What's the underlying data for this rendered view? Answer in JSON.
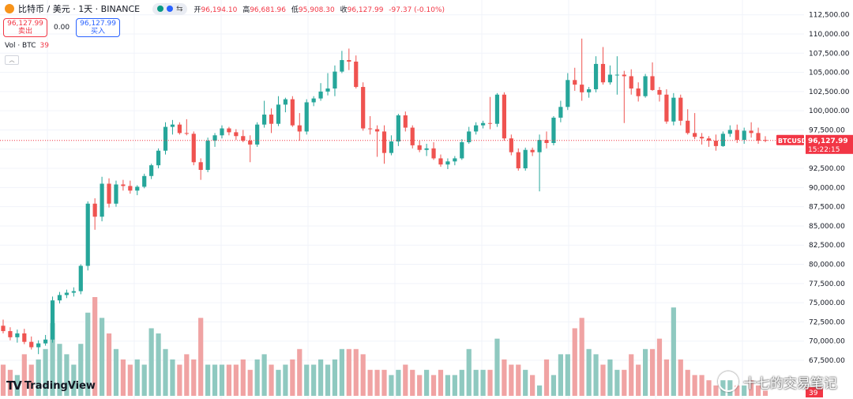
{
  "header": {
    "symbol_title": "比特币 / 美元 · 1天 · BINANCE",
    "ohlc": [
      {
        "label": "开",
        "value": "96,194.10"
      },
      {
        "label": "高",
        "value": "96,681.96"
      },
      {
        "label": "低",
        "value": "95,908.30"
      },
      {
        "label": "收",
        "value": "96,127.99"
      }
    ],
    "change": "-97.37 (-0.10%)",
    "sell_price": "96,127.99",
    "sell_label": "卖出",
    "spread": "0.00",
    "buy_price": "96,127.99",
    "buy_label": "买入",
    "volume_label": "Vol · BTC",
    "volume_value": "39"
  },
  "colors": {
    "up": "#26a69a",
    "down": "#ef5350",
    "up_vol": "#8fc9c0",
    "down_vol": "#f0a3a3"
  },
  "last_price_tag": {
    "ticker": "BTCUSD",
    "price": "96,127.99",
    "countdown": "15:22:15"
  },
  "volume_tag": "39",
  "branding": {
    "logo_text": "TradingView",
    "watermark": "十七的交易笔记"
  },
  "chart_data": {
    "type": "candlestick",
    "y_axis_labels": [
      "112,500.00",
      "110,000.00",
      "107,500.00",
      "105,000.00",
      "102,500.00",
      "100,000.00",
      "97,500.00",
      "95,000.00",
      "92,500.00",
      "90,000.00",
      "87,500.00",
      "85,000.00",
      "82,500.00",
      "80,000.00",
      "77,500.00",
      "75,000.00",
      "72,500.00",
      "70,000.00",
      "67,500.00"
    ],
    "ylim": [
      66000,
      113500
    ],
    "last_price": 96127.99,
    "candles": [
      [
        72000,
        72800,
        71000,
        71300,
        6
      ],
      [
        71300,
        71800,
        70100,
        70500,
        5
      ],
      [
        70500,
        71500,
        69800,
        71000,
        4
      ],
      [
        71000,
        71600,
        69600,
        69900,
        8
      ],
      [
        69900,
        70600,
        68900,
        69200,
        6
      ],
      [
        69200,
        70100,
        68300,
        69700,
        7
      ],
      [
        69700,
        70800,
        69400,
        70200,
        9
      ],
      [
        70200,
        75800,
        69800,
        75300,
        14
      ],
      [
        75300,
        76400,
        74900,
        76000,
        10
      ],
      [
        76000,
        76700,
        75600,
        76300,
        8
      ],
      [
        76300,
        77000,
        75800,
        76500,
        6
      ],
      [
        76500,
        80000,
        76100,
        79800,
        10
      ],
      [
        79800,
        88200,
        79200,
        87900,
        16
      ],
      [
        87900,
        88600,
        84500,
        86200,
        19
      ],
      [
        86200,
        91400,
        85600,
        90500,
        15
      ],
      [
        90500,
        91200,
        87400,
        87900,
        12
      ],
      [
        87900,
        90900,
        87500,
        90400,
        9
      ],
      [
        90400,
        91000,
        89600,
        90200,
        7
      ],
      [
        90200,
        90900,
        89200,
        89600,
        6
      ],
      [
        89600,
        90300,
        89000,
        90100,
        7
      ],
      [
        90100,
        91800,
        89900,
        91500,
        6
      ],
      [
        91500,
        93100,
        91100,
        92900,
        13
      ],
      [
        92900,
        95100,
        92500,
        94800,
        12
      ],
      [
        94800,
        98500,
        94300,
        97900,
        9
      ],
      [
        97900,
        98800,
        96900,
        98200,
        7
      ],
      [
        98200,
        98500,
        96900,
        97100,
        6
      ],
      [
        97100,
        98900,
        96800,
        97000,
        8
      ],
      [
        97000,
        97300,
        92900,
        93300,
        7
      ],
      [
        93300,
        93800,
        91000,
        92300,
        15
      ],
      [
        92300,
        96500,
        92000,
        96100,
        6
      ],
      [
        96100,
        97100,
        95300,
        96800,
        6
      ],
      [
        96800,
        98100,
        96400,
        97700,
        6
      ],
      [
        97700,
        97900,
        96800,
        97200,
        6
      ],
      [
        97200,
        97600,
        96200,
        96700,
        6
      ],
      [
        96700,
        97500,
        95900,
        96100,
        7
      ],
      [
        96100,
        96800,
        93300,
        95600,
        5
      ],
      [
        95600,
        98500,
        95300,
        98200,
        7
      ],
      [
        98200,
        101300,
        97800,
        99500,
        8
      ],
      [
        99500,
        100300,
        97100,
        98300,
        6
      ],
      [
        98300,
        101900,
        98000,
        100800,
        5
      ],
      [
        100800,
        101700,
        99800,
        101500,
        6
      ],
      [
        101500,
        101900,
        97900,
        98100,
        7
      ],
      [
        98100,
        99700,
        96100,
        97300,
        9
      ],
      [
        97300,
        101500,
        96900,
        101100,
        6
      ],
      [
        101100,
        101900,
        100600,
        101600,
        6
      ],
      [
        101600,
        103600,
        101300,
        102500,
        7
      ],
      [
        102500,
        104900,
        102000,
        102900,
        6
      ],
      [
        102900,
        105900,
        101900,
        105100,
        7
      ],
      [
        105100,
        107800,
        104900,
        106600,
        9
      ],
      [
        106600,
        108100,
        105300,
        106400,
        9
      ],
      [
        106400,
        107200,
        102900,
        103100,
        9
      ],
      [
        103100,
        103700,
        97400,
        97700,
        8
      ],
      [
        97700,
        99300,
        96900,
        97600,
        5
      ],
      [
        97600,
        98100,
        94000,
        97300,
        5
      ],
      [
        97300,
        98100,
        93100,
        94500,
        5
      ],
      [
        94500,
        96800,
        94200,
        96000,
        4
      ],
      [
        96000,
        99600,
        95400,
        99400,
        5
      ],
      [
        99400,
        99900,
        97300,
        97800,
        6
      ],
      [
        97800,
        98100,
        95100,
        95500,
        5
      ],
      [
        95500,
        96100,
        94600,
        94900,
        4
      ],
      [
        94900,
        95700,
        94100,
        95100,
        5
      ],
      [
        95100,
        95900,
        93600,
        93800,
        4
      ],
      [
        93800,
        94300,
        92700,
        93000,
        5
      ],
      [
        93000,
        93800,
        92400,
        93400,
        4
      ],
      [
        93400,
        94100,
        92900,
        93800,
        4
      ],
      [
        93800,
        96300,
        93600,
        95900,
        5
      ],
      [
        95900,
        97900,
        95700,
        97300,
        9
      ],
      [
        97300,
        98500,
        96900,
        98100,
        5
      ],
      [
        98100,
        98700,
        97700,
        98400,
        5
      ],
      [
        98400,
        101800,
        97600,
        98300,
        5
      ],
      [
        98300,
        102300,
        97900,
        102100,
        11
      ],
      [
        102100,
        102400,
        96100,
        96400,
        7
      ],
      [
        96400,
        96900,
        94200,
        94600,
        6
      ],
      [
        94600,
        95100,
        92200,
        92500,
        6
      ],
      [
        92500,
        95200,
        92200,
        94900,
        5
      ],
      [
        94900,
        95200,
        94100,
        94600,
        4
      ],
      [
        94600,
        96900,
        89500,
        96200,
        2
      ],
      [
        96200,
        97300,
        95100,
        95800,
        7
      ],
      [
        95800,
        99300,
        95500,
        99100,
        4
      ],
      [
        99100,
        101300,
        98500,
        100500,
        8
      ],
      [
        100500,
        104900,
        100100,
        104000,
        8
      ],
      [
        104000,
        105600,
        102600,
        103400,
        13
      ],
      [
        103400,
        109400,
        101300,
        102400,
        15
      ],
      [
        102400,
        103100,
        101700,
        102800,
        9
      ],
      [
        102800,
        107100,
        102400,
        106100,
        8
      ],
      [
        106100,
        108300,
        103400,
        103700,
        6
      ],
      [
        103700,
        105900,
        103400,
        104700,
        7
      ],
      [
        104700,
        107100,
        102100,
        104700,
        5
      ],
      [
        104700,
        105200,
        98400,
        104500,
        5
      ],
      [
        104500,
        105400,
        102100,
        102900,
        8
      ],
      [
        102900,
        103700,
        101200,
        101900,
        6
      ],
      [
        101900,
        104800,
        101700,
        104500,
        9
      ],
      [
        104500,
        106300,
        102600,
        102700,
        9
      ],
      [
        102700,
        103100,
        101200,
        102100,
        11
      ],
      [
        102100,
        102800,
        98300,
        98600,
        7
      ],
      [
        98600,
        102300,
        98100,
        101700,
        17
      ],
      [
        101700,
        102100,
        98100,
        98700,
        7
      ],
      [
        98700,
        100200,
        96900,
        97100,
        5
      ],
      [
        97100,
        99700,
        96300,
        96600,
        4
      ],
      [
        96600,
        97100,
        95600,
        96400,
        4
      ],
      [
        96400,
        96700,
        95300,
        96100,
        3
      ],
      [
        96100,
        96900,
        94800,
        95400,
        2
      ],
      [
        95400,
        97300,
        95300,
        97000,
        3
      ],
      [
        97000,
        98100,
        96600,
        97500,
        3
      ],
      [
        97500,
        98200,
        95800,
        96200,
        2
      ],
      [
        96200,
        97800,
        95700,
        97400,
        2
      ],
      [
        97400,
        98500,
        96500,
        97100,
        3
      ],
      [
        97100,
        97800,
        95700,
        96100,
        2
      ],
      [
        96194.1,
        96681.96,
        95908.3,
        96127.99,
        1
      ]
    ]
  }
}
